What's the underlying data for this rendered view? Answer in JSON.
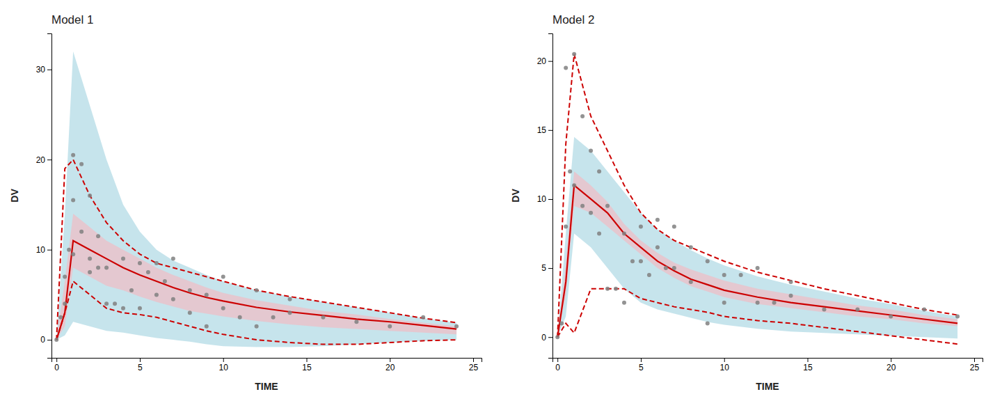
{
  "chart_data": [
    {
      "type": "line",
      "title": "Model 1",
      "xlabel": "TIME",
      "ylabel": "DV",
      "xlim": [
        -0.3,
        25.5
      ],
      "ylim": [
        -2,
        34
      ],
      "xticks": [
        0,
        5,
        10,
        15,
        20,
        25
      ],
      "yticks": [
        0,
        10,
        20,
        30
      ],
      "grid": false,
      "x": [
        0,
        0.5,
        1,
        2,
        3,
        4,
        5,
        6,
        7,
        8,
        9,
        10,
        12,
        14,
        16,
        18,
        20,
        22,
        24
      ],
      "series": [
        {
          "type": "area",
          "color": "#a8d5e2",
          "lower": [
            0,
            0.5,
            2.0,
            1.5,
            1.0,
            0.8,
            0.5,
            0.2,
            0.0,
            -0.2,
            -0.5,
            -0.7,
            -0.8,
            -0.8,
            -0.7,
            -0.5,
            -0.3,
            -0.1,
            0.0
          ],
          "upper": [
            0,
            14.0,
            32.0,
            26.0,
            20.0,
            15.0,
            12.0,
            10.0,
            8.8,
            8.0,
            7.2,
            6.5,
            5.5,
            4.8,
            4.2,
            3.6,
            3.0,
            2.4,
            1.9
          ]
        },
        {
          "type": "area",
          "color": "#f4b8c1",
          "lower": [
            0,
            1.5,
            8.0,
            7.0,
            6.0,
            5.5,
            4.8,
            4.2,
            3.7,
            3.2,
            2.9,
            2.6,
            2.1,
            1.7,
            1.4,
            1.2,
            1.0,
            0.8,
            0.6
          ],
          "upper": [
            0,
            6.5,
            14.0,
            12.5,
            11.0,
            10.0,
            9.0,
            8.0,
            7.2,
            6.5,
            5.8,
            5.2,
            4.4,
            3.8,
            3.2,
            2.8,
            2.3,
            1.9,
            1.5
          ]
        },
        {
          "type": "line",
          "color": "#cc0000",
          "line_style": "dashed",
          "values": [
            0,
            19.0,
            20.0,
            16.0,
            13.0,
            11.0,
            9.5,
            8.5,
            8.0,
            7.5,
            7.0,
            6.5,
            5.5,
            4.8,
            4.2,
            3.6,
            3.0,
            2.4,
            1.9
          ]
        },
        {
          "type": "line",
          "color": "#cc0000",
          "line_style": "dashed",
          "values": [
            0,
            3.0,
            6.5,
            5.0,
            3.5,
            3.0,
            2.8,
            2.5,
            2.0,
            1.5,
            1.0,
            0.6,
            0.0,
            -0.3,
            -0.5,
            -0.5,
            -0.3,
            -0.1,
            0.0
          ]
        },
        {
          "type": "line",
          "color": "#cc0000",
          "line_style": "solid",
          "values": [
            0,
            3.0,
            11.0,
            10.0,
            9.0,
            8.0,
            7.2,
            6.5,
            5.8,
            5.2,
            4.7,
            4.3,
            3.6,
            3.1,
            2.7,
            2.3,
            2.0,
            1.6,
            1.2
          ]
        },
        {
          "type": "scatter",
          "color": "#808080",
          "marker": "circle",
          "x": [
            0.0,
            0.25,
            0.5,
            0.5,
            0.75,
            1.0,
            1.0,
            1.0,
            1.5,
            1.5,
            2.0,
            2.0,
            2.0,
            2.5,
            2.5,
            3.0,
            3.0,
            3.5,
            4.0,
            4.0,
            4.5,
            5.0,
            5.0,
            5.5,
            6.0,
            6.0,
            6.5,
            7.0,
            7.0,
            8.0,
            8.0,
            9.0,
            9.0,
            10.0,
            10.0,
            11.0,
            12.0,
            12.0,
            13.0,
            14.0,
            14.0,
            16.0,
            18.0,
            20.0,
            22.0,
            24.0
          ],
          "values": [
            0.0,
            2.5,
            7.0,
            4.0,
            10.0,
            15.5,
            20.5,
            9.5,
            12.0,
            19.5,
            9.0,
            16.0,
            7.5,
            8.0,
            11.5,
            4.0,
            8.0,
            4.0,
            3.5,
            9.0,
            5.5,
            3.5,
            8.5,
            7.5,
            5.0,
            8.5,
            6.5,
            4.5,
            9.0,
            3.0,
            5.5,
            1.5,
            5.0,
            3.5,
            7.0,
            2.5,
            1.5,
            5.5,
            2.5,
            4.5,
            3.0,
            2.5,
            2.0,
            1.5,
            2.5,
            1.5
          ]
        }
      ]
    },
    {
      "type": "line",
      "title": "Model 2",
      "xlabel": "TIME",
      "ylabel": "DV",
      "xlim": [
        -0.3,
        25.5
      ],
      "ylim": [
        -1.5,
        22
      ],
      "xticks": [
        0,
        5,
        10,
        15,
        20,
        25
      ],
      "yticks": [
        0,
        5,
        10,
        15,
        20
      ],
      "grid": false,
      "x": [
        0,
        0.5,
        1,
        2,
        3,
        4,
        5,
        6,
        7,
        8,
        9,
        10,
        12,
        14,
        16,
        18,
        20,
        22,
        24
      ],
      "series": [
        {
          "type": "area",
          "color": "#a8d5e2",
          "lower": [
            0,
            1.5,
            7.5,
            6.5,
            5.0,
            3.5,
            2.5,
            2.0,
            1.7,
            1.4,
            1.1,
            0.9,
            0.6,
            0.4,
            0.3,
            0.2,
            0.1,
            0.0,
            -0.1
          ],
          "upper": [
            0,
            7.5,
            14.5,
            13.5,
            12.0,
            10.5,
            9.0,
            7.8,
            7.0,
            6.3,
            5.7,
            5.2,
            4.4,
            3.8,
            3.3,
            2.8,
            2.4,
            1.9,
            1.5
          ]
        },
        {
          "type": "area",
          "color": "#f4b8c1",
          "lower": [
            0,
            3.0,
            9.5,
            9.0,
            8.0,
            7.0,
            6.0,
            5.0,
            4.3,
            3.7,
            3.3,
            2.9,
            2.4,
            2.1,
            1.8,
            1.5,
            1.3,
            1.0,
            0.8
          ],
          "upper": [
            0,
            5.5,
            12.0,
            11.0,
            9.8,
            8.2,
            7.0,
            6.1,
            5.4,
            4.9,
            4.5,
            4.1,
            3.5,
            3.1,
            2.7,
            2.3,
            2.0,
            1.6,
            1.3
          ]
        },
        {
          "type": "line",
          "color": "#cc0000",
          "line_style": "dashed",
          "values": [
            0,
            14.0,
            20.5,
            16.0,
            13.5,
            11.0,
            9.0,
            7.8,
            7.0,
            6.5,
            6.0,
            5.5,
            4.7,
            4.1,
            3.5,
            3.0,
            2.5,
            2.0,
            1.6
          ]
        },
        {
          "type": "line",
          "color": "#cc0000",
          "line_style": "dashed",
          "values": [
            0,
            1.0,
            0.3,
            3.5,
            3.5,
            3.5,
            2.8,
            2.5,
            2.2,
            2.0,
            1.8,
            1.5,
            1.2,
            1.0,
            0.7,
            0.4,
            0.1,
            -0.2,
            -0.5
          ]
        },
        {
          "type": "line",
          "color": "#cc0000",
          "line_style": "solid",
          "values": [
            0,
            4.0,
            11.0,
            10.0,
            9.0,
            7.5,
            6.5,
            5.5,
            4.8,
            4.2,
            3.8,
            3.4,
            2.9,
            2.5,
            2.2,
            1.9,
            1.6,
            1.3,
            1.0
          ]
        },
        {
          "type": "scatter",
          "color": "#808080",
          "marker": "circle",
          "x": [
            0.0,
            0.25,
            0.5,
            0.5,
            0.75,
            1.0,
            1.0,
            1.5,
            1.5,
            2.0,
            2.0,
            2.5,
            2.5,
            3.0,
            3.0,
            3.5,
            4.0,
            4.0,
            4.5,
            5.0,
            5.0,
            5.5,
            6.0,
            6.0,
            6.5,
            7.0,
            7.0,
            8.0,
            8.0,
            9.0,
            9.0,
            10.0,
            10.0,
            11.0,
            12.0,
            12.0,
            13.0,
            14.0,
            14.0,
            16.0,
            18.0,
            20.0,
            22.0,
            24.0
          ],
          "values": [
            0.0,
            1.0,
            8.0,
            19.5,
            12.0,
            11.0,
            20.5,
            9.5,
            16.0,
            9.0,
            13.5,
            7.5,
            12.0,
            3.5,
            9.5,
            3.5,
            2.5,
            7.5,
            5.5,
            5.5,
            8.0,
            4.5,
            6.5,
            8.5,
            5.0,
            5.0,
            8.0,
            4.0,
            6.5,
            1.0,
            5.5,
            2.5,
            4.5,
            4.5,
            2.5,
            5.0,
            2.5,
            3.0,
            4.0,
            2.0,
            2.0,
            1.5,
            2.0,
            1.5
          ]
        }
      ]
    }
  ]
}
